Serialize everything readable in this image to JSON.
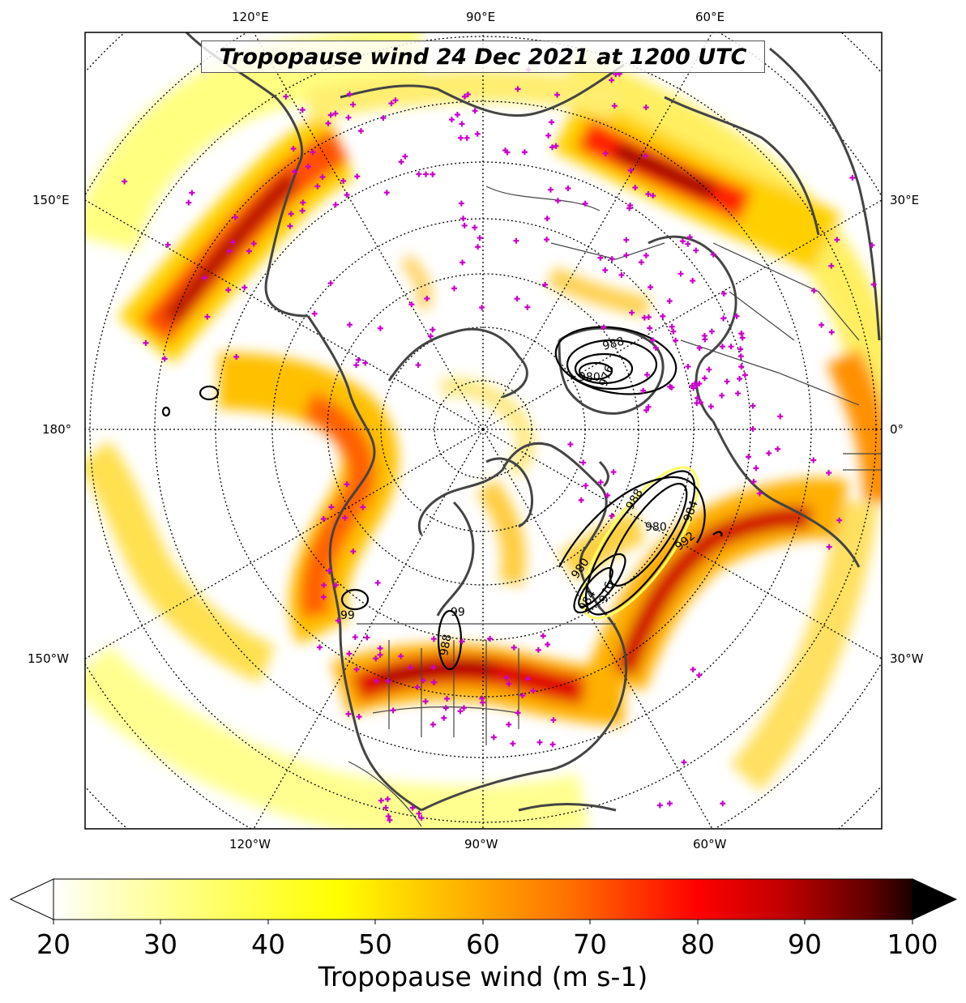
{
  "title": "Tropopause wind 24 Dec 2021 at 1200 UTC",
  "longitude_labels": {
    "top": [
      "120°E",
      "90°E",
      "60°E"
    ],
    "bottom": [
      "120°W",
      "90°W",
      "60°W"
    ],
    "left": [
      "150°E",
      "180°",
      "150°W"
    ],
    "right": [
      "30°E",
      "0°",
      "30°W"
    ]
  },
  "contour_labels": [
    "988",
    "980",
    "976",
    "988",
    "980",
    "984",
    "992",
    "976",
    "980",
    "984",
    "99",
    "988",
    "99"
  ],
  "colorbar": {
    "label": "Tropopause wind (m s-1)",
    "min": 20,
    "max": 100,
    "ticks": [
      "20",
      "30",
      "40",
      "50",
      "60",
      "70",
      "80",
      "90",
      "100"
    ],
    "extend": "both",
    "colormap": "hot_r"
  },
  "colors": {
    "coastline": "#444444",
    "stations": "#cc00cc",
    "contours": "#000000"
  }
}
